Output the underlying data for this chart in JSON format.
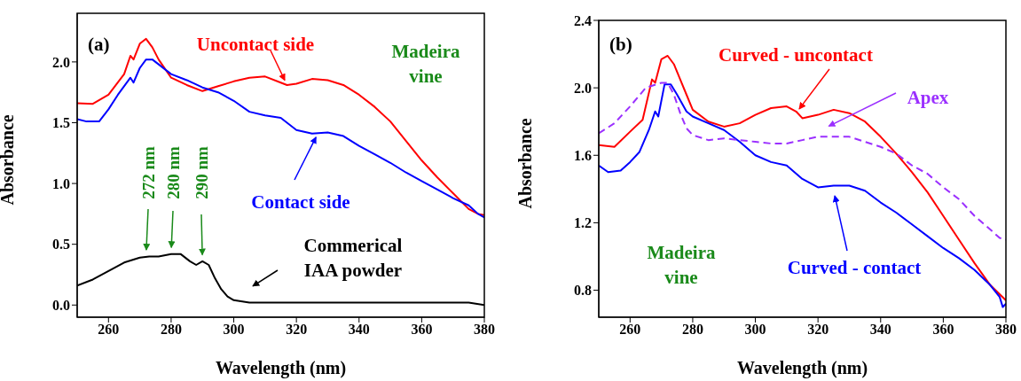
{
  "chart_data": [
    {
      "type": "line",
      "xlabel": "Wavelength (nm)",
      "ylabel": "Absorbance",
      "xlim": [
        250,
        380
      ],
      "ylim": [
        -0.1,
        2.4
      ],
      "xticks": [
        260,
        280,
        300,
        320,
        340,
        360,
        380
      ],
      "yticks": [
        {
          "value": 0,
          "label": "0.0"
        },
        {
          "value": 0.5,
          "label": "0.5"
        },
        {
          "value": 1,
          "label": "1.0"
        },
        {
          "value": 1.5,
          "label": "1.5"
        },
        {
          "value": 2,
          "label": "2.0"
        }
      ],
      "line_style": "solid",
      "marker": "none",
      "series": [
        {
          "color": "#ff0000",
          "x": [
            250,
            255,
            260,
            265,
            267,
            268,
            270,
            272,
            274,
            276,
            280,
            285,
            290,
            295,
            300,
            305,
            310,
            315,
            317,
            320,
            325,
            330,
            335,
            340,
            345,
            350,
            355,
            360,
            365,
            370,
            375,
            378,
            380
          ],
          "values": [
            1.66,
            1.655,
            1.73,
            1.9,
            2.05,
            2.02,
            2.15,
            2.19,
            2.12,
            2.02,
            1.87,
            1.81,
            1.76,
            1.8,
            1.84,
            1.87,
            1.88,
            1.83,
            1.81,
            1.82,
            1.86,
            1.85,
            1.81,
            1.73,
            1.63,
            1.51,
            1.35,
            1.19,
            1.05,
            0.92,
            0.79,
            0.75,
            0.74
          ]
        },
        {
          "color": "#0000ff",
          "x": [
            250,
            253,
            257,
            260,
            263,
            267,
            268,
            270,
            272,
            274,
            276,
            280,
            285,
            290,
            295,
            300,
            305,
            310,
            315,
            320,
            325,
            330,
            335,
            340,
            345,
            350,
            355,
            360,
            365,
            370,
            375,
            378,
            380
          ],
          "values": [
            1.53,
            1.51,
            1.51,
            1.61,
            1.73,
            1.87,
            1.83,
            1.95,
            2.02,
            2.02,
            1.98,
            1.9,
            1.85,
            1.79,
            1.75,
            1.68,
            1.59,
            1.56,
            1.54,
            1.44,
            1.41,
            1.42,
            1.39,
            1.31,
            1.24,
            1.17,
            1.09,
            1.02,
            0.95,
            0.88,
            0.82,
            0.75,
            0.72
          ]
        },
        {
          "color": "#000000",
          "x": [
            250,
            255,
            260,
            265,
            270,
            273,
            276,
            280,
            283,
            286,
            288,
            290,
            292,
            294,
            296,
            298,
            300,
            305,
            320,
            340,
            360,
            375,
            380
          ],
          "values": [
            0.16,
            0.21,
            0.28,
            0.35,
            0.39,
            0.4,
            0.4,
            0.42,
            0.42,
            0.36,
            0.33,
            0.36,
            0.33,
            0.22,
            0.13,
            0.07,
            0.04,
            0.02,
            0.02,
            0.02,
            0.02,
            0.02,
            0.0
          ]
        }
      ],
      "annotations": [
        "(a)",
        {
          "text": "Uncontact side",
          "x": 317,
          "y": 1.81
        },
        "Madeira vine",
        {
          "text": "Contact side",
          "x": 327,
          "y": 1.42
        },
        {
          "text": "272 nm",
          "x": 272,
          "y": 0.41
        },
        {
          "text": "280 nm",
          "x": 280,
          "y": 0.43
        },
        {
          "text": "290 nm",
          "x": 290,
          "y": 0.37
        },
        "Commerical IAA powder"
      ]
    },
    {
      "type": "line",
      "xlabel": "Wavelength (nm)",
      "ylabel": "Absorbance",
      "xlim": [
        250,
        380
      ],
      "ylim": [
        0.64,
        2.4
      ],
      "xticks": [
        260,
        280,
        300,
        320,
        340,
        360,
        380
      ],
      "yticks": [
        {
          "value": 0.8,
          "label": "0.8"
        },
        {
          "value": 1.2,
          "label": "1.2"
        },
        {
          "value": 1.6,
          "label": "1.6"
        },
        {
          "value": 2,
          "label": "2.0"
        },
        {
          "value": 2.4,
          "label": "2.4"
        }
      ],
      "marker": "none",
      "series": [
        {
          "color": "#ff0000",
          "line_style": "solid",
          "x": [
            250,
            255,
            260,
            264,
            267,
            268,
            270,
            272,
            274,
            276,
            278,
            280,
            285,
            290,
            295,
            300,
            305,
            310,
            313,
            315,
            320,
            325,
            330,
            335,
            340,
            345,
            350,
            355,
            360,
            365,
            370,
            375,
            380
          ],
          "values": [
            1.66,
            1.65,
            1.74,
            1.81,
            2.05,
            2.03,
            2.17,
            2.19,
            2.14,
            2.05,
            1.96,
            1.87,
            1.8,
            1.77,
            1.79,
            1.84,
            1.88,
            1.89,
            1.86,
            1.82,
            1.84,
            1.87,
            1.85,
            1.8,
            1.71,
            1.61,
            1.5,
            1.38,
            1.24,
            1.1,
            0.96,
            0.83,
            0.74
          ]
        },
        {
          "color": "#0000ff",
          "line_style": "solid",
          "x": [
            250,
            253,
            257,
            260,
            263,
            266,
            268,
            269,
            271,
            273,
            275,
            278,
            280,
            285,
            290,
            295,
            300,
            305,
            310,
            315,
            320,
            325,
            330,
            335,
            340,
            345,
            350,
            355,
            360,
            365,
            370,
            375,
            378,
            379,
            380
          ],
          "values": [
            1.54,
            1.5,
            1.51,
            1.56,
            1.62,
            1.75,
            1.86,
            1.83,
            2.02,
            2.02,
            1.96,
            1.86,
            1.83,
            1.79,
            1.75,
            1.68,
            1.6,
            1.56,
            1.54,
            1.46,
            1.41,
            1.42,
            1.42,
            1.39,
            1.32,
            1.26,
            1.19,
            1.12,
            1.05,
            0.99,
            0.92,
            0.83,
            0.76,
            0.7,
            0.72
          ]
        },
        {
          "color": "#9b30ff",
          "line_style": "dashed",
          "x": [
            250,
            255,
            260,
            265,
            270,
            272,
            274,
            276,
            278,
            280,
            285,
            290,
            300,
            305,
            310,
            315,
            320,
            325,
            330,
            335,
            340,
            345,
            350,
            355,
            360,
            365,
            370,
            375,
            378,
            380
          ],
          "values": [
            1.73,
            1.79,
            1.89,
            2.0,
            2.03,
            2.03,
            1.96,
            1.85,
            1.76,
            1.72,
            1.69,
            1.7,
            1.68,
            1.67,
            1.67,
            1.69,
            1.71,
            1.71,
            1.71,
            1.68,
            1.65,
            1.61,
            1.54,
            1.49,
            1.41,
            1.34,
            1.24,
            1.16,
            1.11,
            1.1
          ]
        }
      ],
      "annotations": [
        "(b)",
        {
          "text": "Curved - uncontact",
          "x": 313,
          "y": 1.85
        },
        "Apex",
        {
          "text": "Curved - contact",
          "x": 325,
          "y": 1.39
        },
        "Madeira vine"
      ]
    }
  ]
}
